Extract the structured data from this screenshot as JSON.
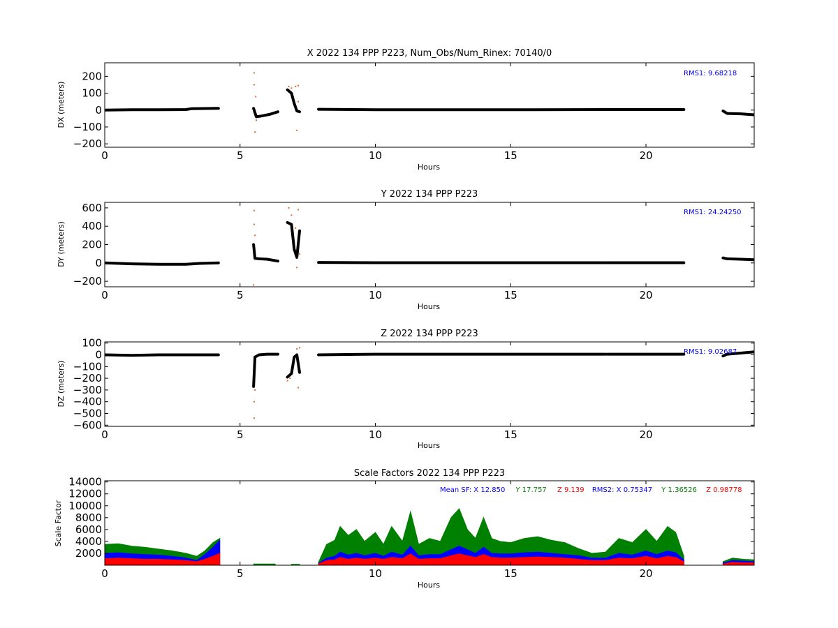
{
  "chart_data": [
    {
      "type": "scatter",
      "title": "X 2022 134 PPP  P223, Num_Obs/Num_Rinex: 70140/0",
      "xlabel": "Hours",
      "ylabel": "DX (meters)",
      "xlim": [
        0,
        24
      ],
      "ylim": [
        -220,
        280
      ],
      "xticks": [
        0,
        5,
        10,
        15,
        20
      ],
      "yticks": [
        -200,
        -100,
        0,
        100,
        200
      ],
      "annotation": "RMS1:  9.68218",
      "annotation_color": "#0000ff",
      "grid": false,
      "series": [
        {
          "color": "#000000",
          "segments": [
            {
              "x": [
                0,
                1,
                2,
                3,
                3.2,
                4.2
              ],
              "y": [
                0,
                2,
                2,
                3,
                8,
                10
              ]
            },
            {
              "x": [
                5.5,
                5.6,
                5.8,
                6.1,
                6.4
              ],
              "y": [
                10,
                -40,
                -35,
                -25,
                -10
              ]
            },
            {
              "x": [
                6.75,
                6.9,
                7.0,
                7.1,
                7.2
              ],
              "y": [
                120,
                100,
                40,
                -5,
                -10
              ]
            },
            {
              "x": [
                7.9,
                10,
                15,
                18.5
              ],
              "y": [
                5,
                2,
                2,
                3
              ]
            },
            {
              "x": [
                18.55,
                21.4
              ],
              "y": [
                3,
                3
              ]
            },
            {
              "x": [
                22.85,
                23.0,
                23.5,
                24.0
              ],
              "y": [
                -5,
                -20,
                -22,
                -28
              ]
            }
          ]
        },
        {
          "color": "#e0692a",
          "segments": [
            {
              "x": [
                5.52,
                5.52,
                5.55,
                5.58,
                5.6,
                7.05,
                7.1,
                7.15,
                7.15,
                6.8,
                6.9
              ],
              "y": [
                220,
                150,
                -130,
                80,
                -60,
                140,
                -120,
                145,
                50,
                140,
                130
              ]
            }
          ]
        }
      ]
    },
    {
      "type": "scatter",
      "title": "Y 2022 134 PPP  P223",
      "xlabel": "Hours",
      "ylabel": "DY (meters)",
      "xlim": [
        0,
        24
      ],
      "ylim": [
        -260,
        660
      ],
      "xticks": [
        0,
        5,
        10,
        15,
        20
      ],
      "yticks": [
        -200,
        0,
        200,
        400,
        600
      ],
      "annotation": "RMS1: 24.24250",
      "annotation_color": "#0000ff",
      "grid": false,
      "series": [
        {
          "color": "#000000",
          "segments": [
            {
              "x": [
                0,
                1,
                2,
                3,
                3.5,
                4.2
              ],
              "y": [
                0,
                -10,
                -15,
                -15,
                -5,
                0
              ]
            },
            {
              "x": [
                5.5,
                5.55,
                5.7,
                6.0,
                6.4
              ],
              "y": [
                200,
                50,
                45,
                40,
                20
              ]
            },
            {
              "x": [
                6.75,
                6.9,
                7.0,
                7.1,
                7.2
              ],
              "y": [
                440,
                420,
                150,
                60,
                350
              ]
            },
            {
              "x": [
                7.9,
                10,
                15,
                18.5
              ],
              "y": [
                5,
                2,
                2,
                2
              ]
            },
            {
              "x": [
                18.55,
                21.4
              ],
              "y": [
                2,
                2
              ]
            },
            {
              "x": [
                22.85,
                23.0,
                23.5,
                24.0
              ],
              "y": [
                55,
                45,
                40,
                35
              ]
            }
          ]
        },
        {
          "color": "#e0692a",
          "segments": [
            {
              "x": [
                5.52,
                5.52,
                5.55,
                5.5,
                6.8,
                6.9,
                7.05,
                7.1,
                7.15,
                7.2
              ],
              "y": [
                570,
                420,
                300,
                -240,
                600,
                520,
                380,
                -50,
                580,
                100
              ],
              "note": ""
            }
          ]
        }
      ]
    },
    {
      "type": "scatter",
      "title": "Z 2022 134 PPP  P223",
      "xlabel": "Hours",
      "ylabel": "DZ (meters)",
      "xlim": [
        0,
        24
      ],
      "ylim": [
        -610,
        110
      ],
      "xticks": [
        0,
        5,
        10,
        15,
        20
      ],
      "yticks": [
        -600,
        -500,
        -400,
        -300,
        -200,
        -100,
        0,
        100
      ],
      "annotation": "RMS1:  9.02687",
      "annotation_color": "#0000ff",
      "grid": false,
      "series": [
        {
          "color": "#000000",
          "segments": [
            {
              "x": [
                0,
                1,
                2,
                3,
                4.2
              ],
              "y": [
                0,
                -5,
                0,
                0,
                0
              ]
            },
            {
              "x": [
                5.5,
                5.55,
                5.7,
                6.0,
                6.4
              ],
              "y": [
                -270,
                -20,
                0,
                5,
                5
              ]
            },
            {
              "x": [
                6.75,
                6.9,
                7.0,
                7.1,
                7.2
              ],
              "y": [
                -190,
                -160,
                -20,
                0,
                -150
              ]
            },
            {
              "x": [
                7.9,
                10,
                15,
                18.5
              ],
              "y": [
                0,
                5,
                5,
                5
              ]
            },
            {
              "x": [
                18.55,
                21.4
              ],
              "y": [
                5,
                5
              ]
            },
            {
              "x": [
                22.85,
                23.0,
                23.5,
                24.0
              ],
              "y": [
                -10,
                5,
                15,
                25
              ]
            }
          ]
        },
        {
          "color": "#e0692a",
          "segments": [
            {
              "x": [
                5.52,
                5.52,
                5.55,
                6.75,
                6.85,
                7.1,
                7.15,
                7.2
              ],
              "y": [
                -540,
                -400,
                -300,
                -220,
                -200,
                50,
                -280,
                60
              ]
            }
          ]
        }
      ]
    },
    {
      "type": "area",
      "title": "Scale Factors 2022 134 PPP  P223",
      "xlabel": "Hours",
      "ylabel": "Scale Factor",
      "xlim": [
        0,
        24
      ],
      "ylim": [
        0,
        14200
      ],
      "xticks": [
        0,
        5,
        10,
        15,
        20
      ],
      "yticks": [
        2000,
        4000,
        6000,
        8000,
        10000,
        12000,
        14000
      ],
      "grid": false,
      "annotations": [
        {
          "text": "Mean SF: X  12.850",
          "color": "#0000ff"
        },
        {
          "text": "Y  17.757",
          "color": "#008000"
        },
        {
          "text": "Z   9.139",
          "color": "#ff0000"
        },
        {
          "text": "RMS2: X  0.75347",
          "color": "#0000ff"
        },
        {
          "text": "Y  1.36526",
          "color": "#008000"
        },
        {
          "text": "Z  0.98778",
          "color": "#ff0000"
        }
      ],
      "series": [
        {
          "color": "#008000",
          "segments": [
            {
              "x": [
                0,
                0.5,
                1.0,
                1.5,
                2.0,
                2.5,
                3.0,
                3.4,
                3.7,
                4.0,
                4.25
              ],
              "y": [
                3500,
                3600,
                3200,
                3000,
                2700,
                2400,
                2000,
                1500,
                2400,
                3800,
                4500
              ]
            },
            {
              "x": [
                5.5,
                6.3
              ],
              "y": [
                200,
                200
              ]
            },
            {
              "x": [
                6.9,
                7.2
              ],
              "y": [
                150,
                150
              ]
            },
            {
              "x": [
                7.9,
                8.2,
                8.5,
                8.7,
                9.0,
                9.3,
                9.6,
                10.0,
                10.3,
                10.6,
                11.0,
                11.3,
                11.6,
                12.0,
                12.4,
                12.8,
                13.1,
                13.4,
                13.7,
                14.0,
                14.3,
                14.6,
                15.0,
                15.5,
                16.0,
                16.5,
                17.0,
                17.5,
                18.0,
                18.5,
                19.0,
                19.5,
                20.0,
                20.4,
                20.8,
                21.1,
                21.4
              ],
              "y": [
                500,
                3500,
                4200,
                6500,
                5000,
                6000,
                4000,
                5500,
                3500,
                6500,
                4000,
                9000,
                3500,
                4500,
                4000,
                8000,
                9500,
                6000,
                4500,
                8000,
                4500,
                4000,
                3800,
                4500,
                4800,
                4200,
                3800,
                2800,
                2000,
                2200,
                4500,
                3800,
                6000,
                4000,
                6500,
                5500,
                1500
              ]
            },
            {
              "x": [
                22.85,
                23.2,
                23.6,
                24.0
              ],
              "y": [
                600,
                1200,
                1000,
                900
              ]
            }
          ]
        },
        {
          "color": "#0000ff",
          "segments": [
            {
              "x": [
                0,
                0.5,
                1.0,
                1.5,
                2.0,
                2.5,
                3.0,
                3.4,
                3.7,
                4.0,
                4.25
              ],
              "y": [
                2000,
                2100,
                1900,
                1800,
                1700,
                1500,
                1200,
                800,
                1800,
                3000,
                4200
              ]
            },
            {
              "x": [
                7.9,
                8.2,
                8.5,
                8.7,
                9.0,
                9.3,
                9.6,
                10.0,
                10.3,
                10.6,
                11.0,
                11.3,
                11.6,
                12.0,
                12.4,
                12.8,
                13.1,
                13.4,
                13.7,
                14.0,
                14.3,
                14.6,
                15.0,
                15.5,
                16.0,
                16.5,
                17.0,
                17.5,
                18.0,
                18.5,
                19.0,
                19.5,
                20.0,
                20.4,
                20.8,
                21.1,
                21.4
              ],
              "y": [
                300,
                1200,
                1500,
                2200,
                1700,
                2000,
                1600,
                2000,
                1500,
                2200,
                1700,
                3200,
                1600,
                1800,
                1800,
                2600,
                3200,
                2600,
                2000,
                3000,
                2000,
                1900,
                1900,
                2100,
                2200,
                2000,
                1800,
                1600,
                1200,
                1200,
                2000,
                1700,
                2400,
                1800,
                2400,
                2100,
                900
              ]
            },
            {
              "x": [
                22.85,
                23.2,
                23.6,
                24.0
              ],
              "y": [
                400,
                800,
                700,
                600
              ]
            }
          ]
        },
        {
          "color": "#ff0000",
          "segments": [
            {
              "x": [
                0,
                0.5,
                1.0,
                1.5,
                2.0,
                2.5,
                3.0,
                3.4,
                3.7,
                4.0,
                4.25
              ],
              "y": [
                1100,
                1200,
                1100,
                1000,
                1000,
                900,
                800,
                600,
                1000,
                1500,
                2000
              ]
            },
            {
              "x": [
                7.9,
                8.2,
                8.5,
                8.7,
                9.0,
                9.3,
                9.6,
                10.0,
                10.3,
                10.6,
                11.0,
                11.3,
                11.6,
                12.0,
                12.4,
                12.8,
                13.1,
                13.4,
                13.7,
                14.0,
                14.3,
                14.6,
                15.0,
                15.5,
                16.0,
                16.5,
                17.0,
                17.5,
                18.0,
                18.5,
                19.0,
                19.5,
                20.0,
                20.4,
                20.8,
                21.1,
                21.4
              ],
              "y": [
                200,
                800,
                900,
                1300,
                1000,
                1200,
                1000,
                1200,
                1000,
                1300,
                1100,
                1900,
                1000,
                1100,
                1100,
                1600,
                1900,
                1600,
                1300,
                1800,
                1300,
                1200,
                1200,
                1300,
                1400,
                1300,
                1200,
                1000,
                800,
                800,
                1200,
                1100,
                1500,
                1100,
                1500,
                1300,
                600
              ]
            },
            {
              "x": [
                22.85,
                23.2,
                23.6,
                24.0
              ],
              "y": [
                200,
                500,
                400,
                400
              ]
            }
          ]
        }
      ]
    }
  ]
}
